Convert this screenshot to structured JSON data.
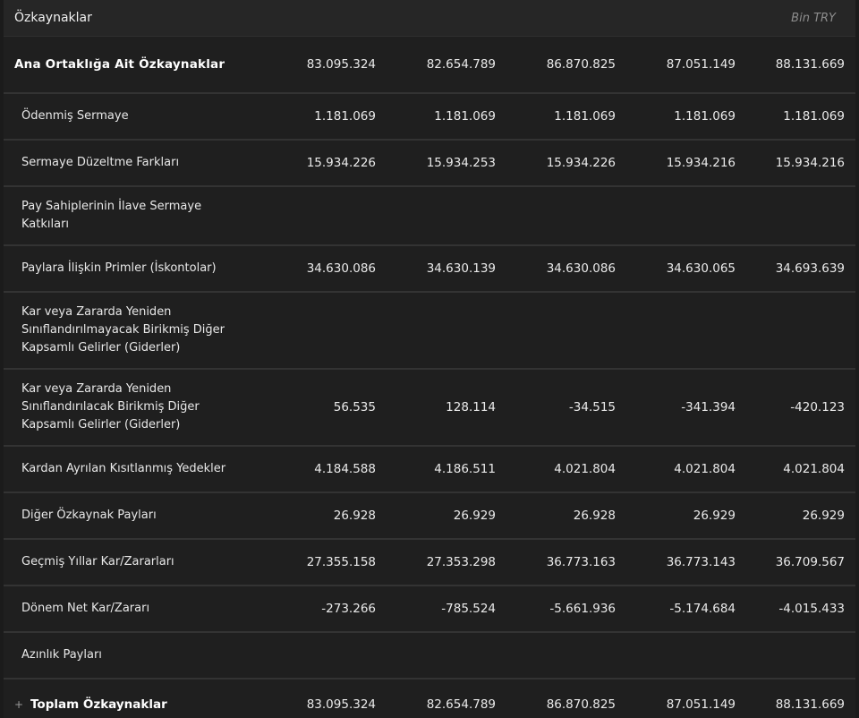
{
  "header": {
    "title": "Özkaynaklar",
    "unit": "Bin TRY"
  },
  "main_row": {
    "label": "Ana Ortaklığa Ait Özkaynaklar",
    "values": [
      "83.095.324",
      "82.654.789",
      "86.870.825",
      "87.051.149",
      "88.131.669"
    ]
  },
  "rows": [
    {
      "label": "Ödenmiş Sermaye",
      "values": [
        "1.181.069",
        "1.181.069",
        "1.181.069",
        "1.181.069",
        "1.181.069"
      ]
    },
    {
      "label": "Sermaye Düzeltme Farkları",
      "values": [
        "15.934.226",
        "15.934.253",
        "15.934.226",
        "15.934.216",
        "15.934.216"
      ]
    },
    {
      "label_lines": [
        "Pay Sahiplerinin İlave Sermaye",
        "Katkıları"
      ],
      "values": [
        "",
        "",
        "",
        "",
        ""
      ]
    },
    {
      "label": "Paylara İlişkin Primler (İskontolar)",
      "values": [
        "34.630.086",
        "34.630.139",
        "34.630.086",
        "34.630.065",
        "34.693.639"
      ]
    },
    {
      "label_lines": [
        "Kar veya Zararda Yeniden",
        "Sınıflandırılmayacak Birikmiş Diğer",
        "Kapsamlı Gelirler (Giderler)"
      ],
      "values": [
        "",
        "",
        "",
        "",
        ""
      ]
    },
    {
      "label_lines": [
        "Kar veya Zararda Yeniden",
        "Sınıflandırılacak Birikmiş Diğer",
        "Kapsamlı Gelirler (Giderler)"
      ],
      "values": [
        "56.535",
        "128.114",
        "-34.515",
        "-341.394",
        "-420.123"
      ]
    },
    {
      "label": "Kardan Ayrılan Kısıtlanmış Yedekler",
      "values": [
        "4.184.588",
        "4.186.511",
        "4.021.804",
        "4.021.804",
        "4.021.804"
      ]
    },
    {
      "label": "Diğer Özkaynak Payları",
      "values": [
        "26.928",
        "26.929",
        "26.928",
        "26.929",
        "26.929"
      ]
    },
    {
      "label": "Geçmiş Yıllar Kar/Zararları",
      "values": [
        "27.355.158",
        "27.353.298",
        "36.773.163",
        "36.773.143",
        "36.709.567"
      ]
    },
    {
      "label": "Dönem Net Kar/Zararı",
      "values": [
        "-273.266",
        "-785.524",
        "-5.661.936",
        "-5.174.684",
        "-4.015.433"
      ]
    },
    {
      "label": "Azınlık Payları",
      "values": [
        "",
        "",
        "",
        "",
        ""
      ]
    }
  ],
  "total_row": {
    "expand_icon": "+",
    "label": "Toplam Özkaynaklar",
    "values": [
      "83.095.324",
      "82.654.789",
      "86.870.825",
      "87.051.149",
      "88.131.669"
    ]
  }
}
